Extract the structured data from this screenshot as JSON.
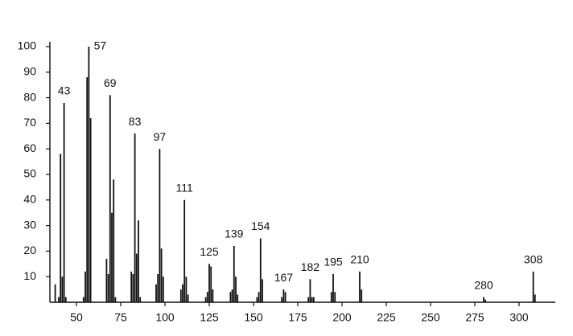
{
  "chart_data": {
    "type": "bar",
    "color": "#111111",
    "x": [
      38,
      40,
      41,
      42,
      43,
      44,
      54,
      55,
      56,
      57,
      58,
      67,
      68,
      69,
      70,
      71,
      72,
      81,
      82,
      83,
      84,
      85,
      86,
      95,
      96,
      97,
      98,
      99,
      109,
      110,
      111,
      112,
      113,
      123,
      124,
      125,
      126,
      127,
      137,
      138,
      139,
      140,
      141,
      152,
      153,
      154,
      155,
      166,
      167,
      168,
      181,
      182,
      183,
      184,
      194,
      195,
      196,
      210,
      211,
      280,
      281,
      308,
      309
    ],
    "values": [
      7,
      2,
      58,
      10,
      78,
      2,
      2,
      12,
      88,
      100,
      72,
      17,
      11,
      81,
      35,
      48,
      2,
      12,
      11,
      66,
      19,
      32,
      2,
      7,
      11,
      60,
      21,
      10,
      5,
      7,
      40,
      10,
      3,
      2,
      4,
      15,
      14,
      5,
      4,
      5,
      22,
      10,
      3,
      2,
      4,
      25,
      9,
      2,
      5,
      4,
      2,
      9,
      2,
      2,
      4,
      11,
      4,
      12,
      5,
      2,
      1,
      12,
      3
    ],
    "labeled_peaks": [
      43,
      57,
      69,
      83,
      97,
      111,
      125,
      139,
      154,
      167,
      182,
      195,
      210,
      280,
      308
    ],
    "xlim": [
      35,
      320
    ],
    "ylim": [
      0,
      100
    ],
    "xticks": [
      50,
      75,
      100,
      125,
      150,
      175,
      200,
      225,
      250,
      275,
      300
    ],
    "yticks": [
      10,
      20,
      30,
      40,
      50,
      60,
      70,
      80,
      90,
      100
    ]
  }
}
